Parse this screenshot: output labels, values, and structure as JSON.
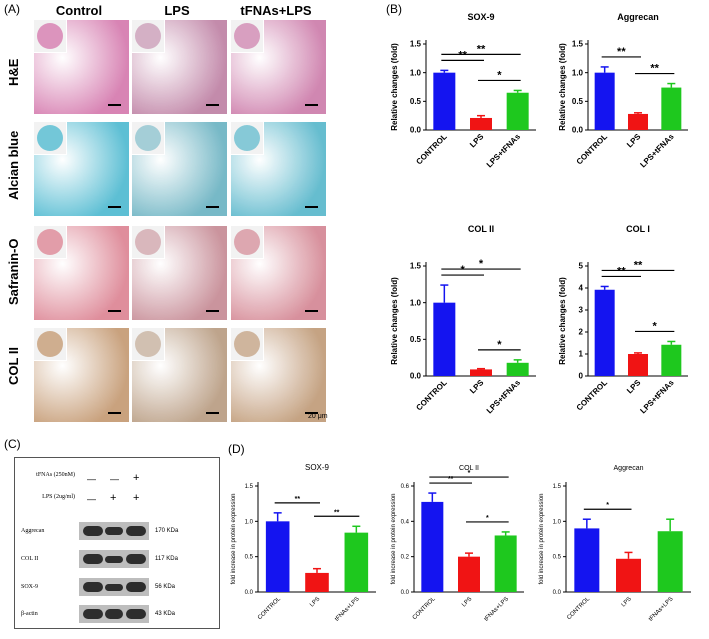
{
  "panels": {
    "a": "(A)",
    "b": "(B)",
    "c": "(C)",
    "d": "(D)"
  },
  "histology": {
    "columns": [
      "Control",
      "LPS",
      "tFNAs+LPS"
    ],
    "rows": [
      "H&E",
      "Alcian blue",
      "Safranin-O",
      "COL II"
    ],
    "scale_bar": "20 μm"
  },
  "colors": {
    "control": "#1414f0",
    "lps": "#f01414",
    "tfnas": "#1ec81e",
    "he": "#d884b4",
    "alcian": "#5dbfd4",
    "safranin": "#df8e9c",
    "col2": "#c9a27e"
  },
  "blot": {
    "treatments": [
      {
        "label": "tFNAs (250nM)",
        "signs": [
          "—",
          "—",
          "+"
        ]
      },
      {
        "label": "LPS (2ug/ml)",
        "signs": [
          "—",
          "+",
          "+"
        ]
      }
    ],
    "proteins": [
      {
        "name": "Aggrecan",
        "kda": "170 KDa"
      },
      {
        "name": "COL II",
        "kda": "117 KDa"
      },
      {
        "name": "SOX-9",
        "kda": "56 KDa"
      },
      {
        "name": "β-actin",
        "kda": "43 KDa"
      }
    ]
  },
  "chart_data": [
    {
      "panel": "B",
      "type": "bar",
      "title": "SOX-9",
      "ylabel": "Relative changes (fold)",
      "categories": [
        "CONTROL",
        "LPS",
        "LPS+tFNAs"
      ],
      "values": [
        1.0,
        0.21,
        0.65
      ],
      "errors": [
        0.04,
        0.04,
        0.04
      ],
      "ylim": [
        0,
        1.5
      ],
      "yticks": [
        "0.0",
        "0.5",
        "1.0",
        "1.5"
      ],
      "significance": [
        {
          "from": 0,
          "to": 1,
          "label": "**"
        },
        {
          "from": 0,
          "to": 2,
          "label": "**"
        },
        {
          "from": 1,
          "to": 2,
          "label": "*"
        }
      ]
    },
    {
      "panel": "B",
      "type": "bar",
      "title": "Aggrecan",
      "ylabel": "Relative changes (fold)",
      "categories": [
        "CONTROL",
        "LPS",
        "LPS+tFNAs"
      ],
      "values": [
        1.0,
        0.28,
        0.74
      ],
      "errors": [
        0.1,
        0.02,
        0.07
      ],
      "ylim": [
        0,
        1.5
      ],
      "yticks": [
        "0.0",
        "0.5",
        "1.0",
        "1.5"
      ],
      "significance": [
        {
          "from": 0,
          "to": 1,
          "label": "**"
        },
        {
          "from": 1,
          "to": 2,
          "label": "**"
        }
      ]
    },
    {
      "panel": "B",
      "type": "bar",
      "title": "COL II",
      "ylabel": "Relative changes (fold)",
      "categories": [
        "CONTROL",
        "LPS",
        "LPS+tFNAs"
      ],
      "values": [
        1.0,
        0.09,
        0.18
      ],
      "errors": [
        0.24,
        0.01,
        0.04
      ],
      "ylim": [
        0,
        1.5
      ],
      "yticks": [
        "0.0",
        "0.5",
        "1.0",
        "1.5"
      ],
      "significance": [
        {
          "from": 0,
          "to": 1,
          "label": "*"
        },
        {
          "from": 0,
          "to": 2,
          "label": "*"
        },
        {
          "from": 1,
          "to": 2,
          "label": "*"
        }
      ]
    },
    {
      "panel": "B",
      "type": "bar",
      "title": "COL I",
      "ylabel": "Relative changes (fold)",
      "categories": [
        "CONTROL",
        "LPS",
        "LPS+tFNAs"
      ],
      "values": [
        3.92,
        1.0,
        1.42
      ],
      "errors": [
        0.15,
        0.05,
        0.15
      ],
      "ylim": [
        0,
        5
      ],
      "yticks": [
        "0",
        "1",
        "2",
        "3",
        "4",
        "5"
      ],
      "significance": [
        {
          "from": 0,
          "to": 1,
          "label": "**"
        },
        {
          "from": 0,
          "to": 2,
          "label": "**"
        },
        {
          "from": 1,
          "to": 2,
          "label": "*"
        }
      ]
    },
    {
      "panel": "D",
      "type": "bar",
      "title": "SOX-9",
      "ylabel": "fold increase in protein expression",
      "categories": [
        "CONTROL",
        "LPS",
        "tFNAs+LPS"
      ],
      "values": [
        1.0,
        0.27,
        0.84
      ],
      "errors": [
        0.12,
        0.06,
        0.09
      ],
      "ylim": [
        0,
        1.5
      ],
      "yticks": [
        "0.0",
        "0.5",
        "1.0",
        "1.5"
      ],
      "significance": [
        {
          "from": 0,
          "to": 1,
          "label": "**"
        },
        {
          "from": 1,
          "to": 2,
          "label": "**"
        }
      ]
    },
    {
      "panel": "D",
      "type": "bar",
      "title": "COL II",
      "ylabel": "fold increase in protein expression",
      "categories": [
        "CONTROL",
        "LPS",
        "tFNAs+LPS"
      ],
      "values": [
        0.51,
        0.2,
        0.32
      ],
      "errors": [
        0.05,
        0.02,
        0.02
      ],
      "ylim": [
        0,
        0.6
      ],
      "yticks": [
        "0.0",
        "0.2",
        "0.4",
        "0.6"
      ],
      "significance": [
        {
          "from": 0,
          "to": 1,
          "label": "**"
        },
        {
          "from": 0,
          "to": 2,
          "label": "*"
        },
        {
          "from": 1,
          "to": 2,
          "label": "*"
        }
      ]
    },
    {
      "panel": "D",
      "type": "bar",
      "title": "Aggrecan",
      "ylabel": "fold increase in protein expression",
      "categories": [
        "CONTROL",
        "LPS",
        "tFNAs+LPS"
      ],
      "values": [
        0.9,
        0.47,
        0.86
      ],
      "errors": [
        0.13,
        0.09,
        0.17
      ],
      "ylim": [
        0,
        1.5
      ],
      "yticks": [
        "0.0",
        "0.5",
        "1.0",
        "1.5"
      ],
      "significance": [
        {
          "from": 0,
          "to": 1,
          "label": "*"
        }
      ]
    }
  ]
}
